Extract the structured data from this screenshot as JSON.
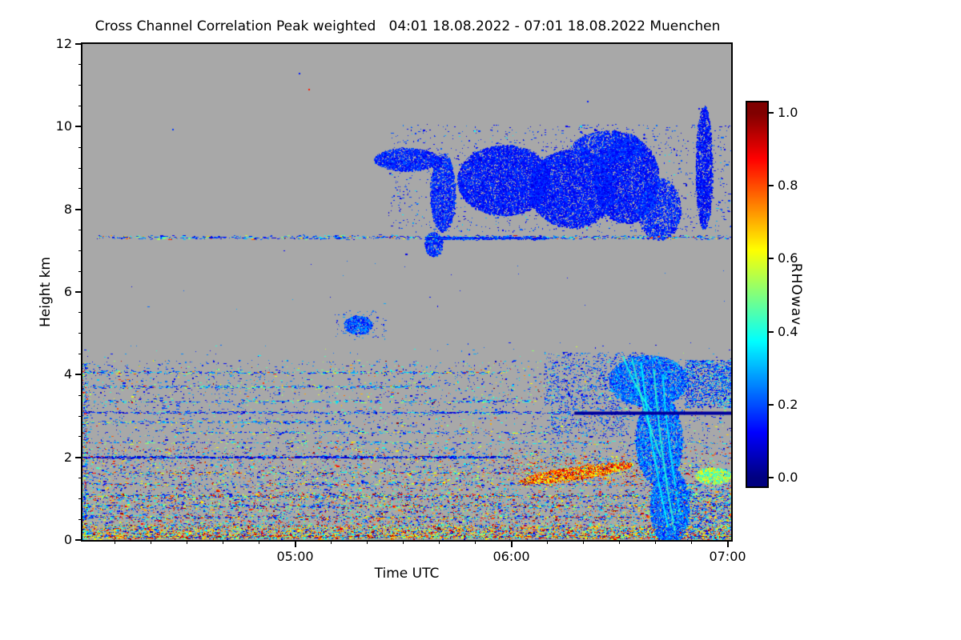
{
  "window": {
    "background": "#ffffff"
  },
  "header": {
    "title": "Cross Channel Correlation Peak weighted   04:01 18.08.2022 - 07:01 18.08.2022 Muenchen"
  },
  "axes": {
    "x_label": "Time UTC",
    "y_label": "Height km",
    "x_span_minutes": 180,
    "x_minor_step_min": 10,
    "x_ticks": [
      {
        "label": "05:00",
        "minute": 59
      },
      {
        "label": "06:00",
        "minute": 119
      },
      {
        "label": "07:00",
        "minute": 179
      }
    ],
    "y_max_km": 12,
    "y_minor_step_km": 0.5,
    "y_ticks": [
      {
        "label": "0",
        "km": 0
      },
      {
        "label": "2",
        "km": 2
      },
      {
        "label": "4",
        "km": 4
      },
      {
        "label": "6",
        "km": 6
      },
      {
        "label": "8",
        "km": 8
      },
      {
        "label": "10",
        "km": 10
      },
      {
        "label": "12",
        "km": 12
      }
    ]
  },
  "colorbar": {
    "label": "RHOwav",
    "colormap": "jet",
    "min_color": "#000080",
    "max_color": "#800000",
    "ticks": [
      {
        "label": "0.0",
        "value": 0.0
      },
      {
        "label": "0.2",
        "value": 0.2
      },
      {
        "label": "0.4",
        "value": 0.4
      },
      {
        "label": "0.6",
        "value": 0.6
      },
      {
        "label": "0.8",
        "value": 0.8
      },
      {
        "label": "1.0",
        "value": 1.0
      }
    ]
  },
  "chart_data": {
    "type": "heatmap",
    "title": "Cross Channel Correlation Peak weighted",
    "time_start": "04:01 18.08.2022",
    "time_end": "07:01 18.08.2022",
    "station": "Muenchen",
    "xlabel": "Time UTC",
    "ylabel": "Height km",
    "variable": "RHOwav",
    "value_range": [
      0,
      1
    ],
    "x_minutes_span": 180,
    "height_km_range": [
      0,
      12
    ],
    "background_color": "#a8a8a8",
    "features": [
      {
        "type": "speckles",
        "note": "sparse flecks around upper cloud deck",
        "t": [
          85,
          180
        ],
        "h": [
          7.45,
          10.05
        ],
        "n": 1500,
        "pal": [
          [
            0.9,
            0.08,
            0.22
          ],
          [
            0.1,
            0.22,
            0.4
          ]
        ]
      },
      {
        "type": "blob",
        "note": "cirrus arm left",
        "t": 90,
        "h": 9.2,
        "rt": 9,
        "rh": 0.28,
        "n": 2200,
        "v": [
          0.1,
          0.22
        ]
      },
      {
        "type": "blob",
        "note": "descending strand 05:40",
        "t": 100,
        "h": 8.4,
        "rt": 3.5,
        "rh": 0.95,
        "n": 2400,
        "v": [
          0.1,
          0.22
        ]
      },
      {
        "type": "blob",
        "note": "small fragment 7.2 km",
        "t": 97.5,
        "h": 7.15,
        "rt": 2.5,
        "rh": 0.3,
        "n": 650,
        "v": [
          0.1,
          0.25
        ]
      },
      {
        "type": "blob",
        "note": "main cloud deck 8-9.5 km",
        "t": 117,
        "h": 8.7,
        "rt": 13,
        "rh": 0.85,
        "n": 9000,
        "v": [
          0.09,
          0.2
        ]
      },
      {
        "type": "blob",
        "t": 136,
        "h": 8.5,
        "rt": 12,
        "rh": 0.95,
        "n": 9000,
        "v": [
          0.09,
          0.2
        ]
      },
      {
        "type": "blob",
        "t": 151,
        "h": 8.7,
        "rt": 9,
        "rh": 1.05,
        "n": 7000,
        "v": [
          0.09,
          0.2
        ]
      },
      {
        "type": "blob",
        "note": "cloud top fringe 9.5 km",
        "t": 146,
        "h": 9.5,
        "rt": 10,
        "rh": 0.4,
        "n": 2400,
        "v": [
          0.1,
          0.22
        ]
      },
      {
        "type": "blob",
        "note": "lower right cloud extension",
        "t": 160,
        "h": 8.0,
        "rt": 6,
        "rh": 0.75,
        "n": 2600,
        "v": [
          0.1,
          0.22
        ]
      },
      {
        "type": "blob",
        "note": "vertical column near 07:00 up to 10.4 km",
        "t": 172.5,
        "h": 9.0,
        "rt": 2.3,
        "rh": 1.5,
        "n": 2600,
        "v": [
          0.08,
          0.2
        ]
      },
      {
        "type": "hline",
        "note": "speckle line 7.3 km across plot",
        "hh": 7.32,
        "jit": 0.07,
        "t": [
          4,
          180
        ],
        "n": 800,
        "pal": [
          [
            0.7,
            0.08,
            0.3
          ],
          [
            0.2,
            0.3,
            0.55
          ],
          [
            0.1,
            0.55,
            0.95
          ]
        ]
      },
      {
        "type": "hline",
        "hh": 7.3,
        "jit": 0.05,
        "t": [
          95,
          128
        ],
        "n": 600,
        "pal": [
          [
            1,
            0.08,
            0.25
          ]
        ]
      },
      {
        "type": "blob",
        "note": "small cloud 5.2 km near 05:18",
        "t": 76.5,
        "h": 5.2,
        "rt": 4,
        "rh": 0.22,
        "n": 800,
        "v": [
          0.1,
          0.3
        ]
      },
      {
        "type": "speckles",
        "t": [
          70,
          84
        ],
        "h": [
          4.85,
          5.55
        ],
        "n": 90,
        "pal": [
          [
            1,
            0.1,
            0.3
          ]
        ]
      },
      {
        "type": "dots",
        "note": "isolated specks incl. red dot 10.9 km",
        "pts": [
          [
            62.7,
            10.9,
            0.85
          ],
          [
            25,
            9.93,
            0.18
          ],
          [
            140,
            10.62,
            0.15
          ],
          [
            171,
            10.45,
            0.12
          ],
          [
            60,
            11.3,
            0.15
          ]
        ]
      },
      {
        "type": "speckles",
        "note": "rare dots 4.3-7 km",
        "t": [
          0,
          180
        ],
        "h": [
          4.35,
          4.8
        ],
        "n": 60,
        "pal": [
          [
            0.8,
            0.08,
            0.3
          ],
          [
            0.2,
            0.3,
            0.6
          ]
        ]
      },
      {
        "type": "speckles",
        "t": [
          0,
          180
        ],
        "h": [
          5.5,
          7.0
        ],
        "n": 25,
        "pal": [
          [
            1,
            0.08,
            0.3
          ]
        ]
      },
      {
        "type": "speckles",
        "note": "dense first profile column",
        "t": [
          0,
          1.2
        ],
        "h": [
          0,
          4.3
        ],
        "n": 450,
        "pal": [
          [
            0.5,
            0.05,
            0.3
          ],
          [
            0.25,
            0.3,
            0.55
          ],
          [
            0.25,
            0.55,
            1.0
          ]
        ]
      },
      {
        "type": "speckles",
        "note": "mid-level noise band 2.2-4.3 km",
        "t": [
          0,
          180
        ],
        "h": [
          2.25,
          4.35
        ],
        "n": 3000,
        "pal": [
          [
            0.66,
            0.06,
            0.3
          ],
          [
            0.2,
            0.3,
            0.55
          ],
          [
            0.09,
            0.55,
            0.78
          ],
          [
            0.05,
            0.78,
            1.0
          ]
        ]
      },
      {
        "type": "hline",
        "hh": 4.05,
        "jit": 0.05,
        "t": [
          0,
          118
        ],
        "n": 380,
        "pal": [
          [
            0.7,
            0.08,
            0.35
          ],
          [
            0.2,
            0.35,
            0.6
          ],
          [
            0.1,
            0.6,
            1.0
          ]
        ]
      },
      {
        "type": "hline",
        "hh": 3.7,
        "jit": 0.05,
        "t": [
          0,
          97
        ],
        "n": 340,
        "pal": [
          [
            0.55,
            0.08,
            0.3
          ],
          [
            0.35,
            0.3,
            0.55
          ],
          [
            0.1,
            0.55,
            0.9
          ]
        ]
      },
      {
        "type": "hline",
        "hh": 3.35,
        "jit": 0.05,
        "t": [
          0,
          125
        ],
        "n": 280,
        "pal": [
          [
            0.7,
            0.08,
            0.35
          ],
          [
            0.3,
            0.35,
            0.6
          ]
        ]
      },
      {
        "type": "hline",
        "hh": 3.08,
        "jit": 0.05,
        "t": [
          0,
          136
        ],
        "n": 480,
        "pal": [
          [
            0.8,
            0.05,
            0.25
          ],
          [
            0.2,
            0.25,
            0.5
          ]
        ]
      },
      {
        "type": "hline",
        "hh": 2.85,
        "jit": 0.05,
        "t": [
          0,
          75
        ],
        "n": 240,
        "pal": [
          [
            0.7,
            0.08,
            0.35
          ],
          [
            0.3,
            0.35,
            0.7
          ]
        ]
      },
      {
        "type": "hline",
        "hh": 2.6,
        "jit": 0.05,
        "t": [
          25,
          135
        ],
        "n": 220,
        "pal": [
          [
            0.7,
            0.08,
            0.35
          ],
          [
            0.3,
            0.35,
            0.7
          ]
        ]
      },
      {
        "type": "hline",
        "hh": 2.35,
        "jit": 0.05,
        "t": [
          0,
          180
        ],
        "n": 280,
        "pal": [
          [
            0.6,
            0.08,
            0.35
          ],
          [
            0.3,
            0.35,
            0.6
          ],
          [
            0.1,
            0.6,
            1.0
          ]
        ]
      },
      {
        "type": "hline",
        "note": "dark navy dashed line 2.0 km",
        "hh": 2.0,
        "jit": 0.04,
        "t": [
          0,
          118
        ],
        "n": 1200,
        "pal": [
          [
            0.8,
            0.03,
            0.15
          ],
          [
            0.2,
            0.15,
            0.4
          ]
        ]
      },
      {
        "type": "speckles",
        "note": "noise band 1.1-2.25 km",
        "t": [
          0,
          180
        ],
        "h": [
          1.12,
          2.25
        ],
        "n": 4200,
        "pal": [
          [
            0.5,
            0.05,
            0.3
          ],
          [
            0.2,
            0.3,
            0.5
          ],
          [
            0.14,
            0.5,
            0.72
          ],
          [
            0.16,
            0.72,
            1.0
          ]
        ]
      },
      {
        "type": "hline",
        "hh": 1.62,
        "jit": 0.05,
        "t": [
          0,
          180
        ],
        "n": 420,
        "pal": [
          [
            0.4,
            0.05,
            0.3
          ],
          [
            0.2,
            0.3,
            0.55
          ],
          [
            0.2,
            0.55,
            0.75
          ],
          [
            0.2,
            0.75,
            1.0
          ]
        ]
      },
      {
        "type": "hline",
        "hh": 1.35,
        "jit": 0.05,
        "t": [
          0,
          180
        ],
        "n": 380,
        "pal": [
          [
            0.5,
            0.05,
            0.3
          ],
          [
            0.25,
            0.3,
            0.55
          ],
          [
            0.25,
            0.55,
            0.95
          ]
        ]
      },
      {
        "type": "hline",
        "hh": 1.06,
        "jit": 0.05,
        "t": [
          0,
          180
        ],
        "n": 850,
        "pal": [
          [
            0.45,
            0.05,
            0.3
          ],
          [
            0.25,
            0.3,
            0.55
          ],
          [
            0.15,
            0.55,
            0.75
          ],
          [
            0.15,
            0.75,
            1.0
          ]
        ]
      },
      {
        "type": "speckles",
        "note": "noise band 0.35-1.1 km",
        "t": [
          0,
          180
        ],
        "h": [
          0.36,
          1.12
        ],
        "n": 5200,
        "pal": [
          [
            0.42,
            0.05,
            0.3
          ],
          [
            0.2,
            0.3,
            0.5
          ],
          [
            0.18,
            0.5,
            0.75
          ],
          [
            0.2,
            0.75,
            1.0
          ]
        ]
      },
      {
        "type": "hline",
        "hh": 0.82,
        "jit": 0.05,
        "t": [
          0,
          180
        ],
        "n": 480,
        "pal": [
          [
            0.4,
            0.05,
            0.3
          ],
          [
            0.25,
            0.3,
            0.55
          ],
          [
            0.35,
            0.55,
            1.0
          ]
        ]
      },
      {
        "type": "hline",
        "hh": 0.55,
        "jit": 0.05,
        "t": [
          0,
          180
        ],
        "n": 560,
        "pal": [
          [
            0.4,
            0.05,
            0.3
          ],
          [
            0.25,
            0.3,
            0.55
          ],
          [
            0.35,
            0.55,
            1.0
          ]
        ]
      },
      {
        "type": "speckles",
        "note": "dense multicolour surface band",
        "t": [
          0,
          180
        ],
        "h": [
          0.02,
          0.36
        ],
        "n": 7000,
        "pal": [
          [
            0.24,
            0.05,
            0.3
          ],
          [
            0.18,
            0.3,
            0.5
          ],
          [
            0.23,
            0.5,
            0.75
          ],
          [
            0.35,
            0.6,
            1.0
          ]
        ]
      },
      {
        "type": "hline",
        "hh": 0.08,
        "jit": 0.04,
        "t": [
          0,
          180
        ],
        "n": 1400,
        "pal": [
          [
            0.25,
            0.05,
            0.35
          ],
          [
            0.25,
            0.35,
            0.6
          ],
          [
            0.5,
            0.6,
            1.0
          ]
        ]
      },
      {
        "type": "blob",
        "note": "orange-red patch 1.4-1.9 km 06:00-06:30",
        "t": 137,
        "h": 1.62,
        "rt": 16,
        "rh": 0.16,
        "slope": 0.013,
        "n": 2300,
        "v": [
          0.55,
          0.98
        ]
      },
      {
        "type": "speckles",
        "t": [
          118,
          156
        ],
        "h": [
          1.3,
          2.0
        ],
        "n": 500,
        "pal": [
          [
            0.3,
            0.1,
            0.4
          ],
          [
            0.3,
            0.55,
            0.8
          ],
          [
            0.4,
            0.75,
            1.0
          ]
        ]
      },
      {
        "type": "speckles",
        "note": "blue cluster ahead of precipitation",
        "t": [
          128,
          156
        ],
        "h": [
          3.3,
          4.55
        ],
        "n": 900,
        "pal": [
          [
            0.9,
            0.08,
            0.28
          ],
          [
            0.1,
            0.28,
            0.5
          ]
        ]
      },
      {
        "type": "speckles",
        "t": [
          130,
          152
        ],
        "h": [
          2.5,
          3.3
        ],
        "n": 400,
        "pal": [
          [
            0.9,
            0.08,
            0.28
          ],
          [
            0.1,
            0.28,
            0.5
          ]
        ]
      },
      {
        "type": "blob",
        "note": "precipitation shaft top 06:30-07:00",
        "t": 157,
        "h": 3.85,
        "rt": 11,
        "rh": 0.62,
        "n": 5200,
        "v": [
          0.12,
          0.33
        ]
      },
      {
        "type": "blob",
        "note": "precipitation shaft middle",
        "t": 160,
        "h": 2.4,
        "rt": 6.5,
        "rh": 1.1,
        "n": 5200,
        "v": [
          0.12,
          0.33
        ]
      },
      {
        "type": "blob",
        "note": "precipitation reaching ground",
        "t": 163,
        "h": 0.8,
        "rt": 5.5,
        "rh": 0.95,
        "n": 4200,
        "v": [
          0.12,
          0.33
        ]
      },
      {
        "type": "streak",
        "p": [
          150,
          4.45,
          158,
          3.1
        ],
        "v": 0.4,
        "w": 2
      },
      {
        "type": "streak",
        "p": [
          152.5,
          4.4,
          160.5,
          2.0
        ],
        "v": 0.42,
        "w": 2
      },
      {
        "type": "streak",
        "p": [
          155,
          4.3,
          162.5,
          0.3
        ],
        "v": 0.38,
        "w": 2
      },
      {
        "type": "streak",
        "p": [
          158.5,
          4.15,
          164.5,
          0.15
        ],
        "v": 0.42,
        "w": 2
      },
      {
        "type": "streak",
        "p": [
          161,
          4.0,
          166,
          0.6
        ],
        "v": 0.36,
        "w": 2
      },
      {
        "type": "line",
        "note": "dark navy horizontal line 3.1 km",
        "p": [
          136.5,
          3.07,
          180,
          3.07
        ],
        "v": 0.03,
        "w": 4
      },
      {
        "type": "speckles",
        "note": "blue patch right edge 3.2-4.3 km",
        "t": [
          167,
          180
        ],
        "h": [
          3.2,
          4.35
        ],
        "n": 1300,
        "pal": [
          [
            0.85,
            0.08,
            0.28
          ],
          [
            0.15,
            0.28,
            0.5
          ]
        ]
      },
      {
        "type": "blob",
        "note": "green-cyan patch right edge 1.5 km",
        "t": 175,
        "h": 1.55,
        "rt": 5,
        "rh": 0.2,
        "n": 1100,
        "v": [
          0.35,
          0.68
        ]
      },
      {
        "type": "speckles",
        "t": [
          164,
          180
        ],
        "h": [
          0.0,
          1.3
        ],
        "n": 800,
        "pal": [
          [
            0.6,
            0.08,
            0.3
          ],
          [
            0.25,
            0.3,
            0.55
          ],
          [
            0.15,
            0.55,
            0.9
          ]
        ]
      }
    ]
  }
}
